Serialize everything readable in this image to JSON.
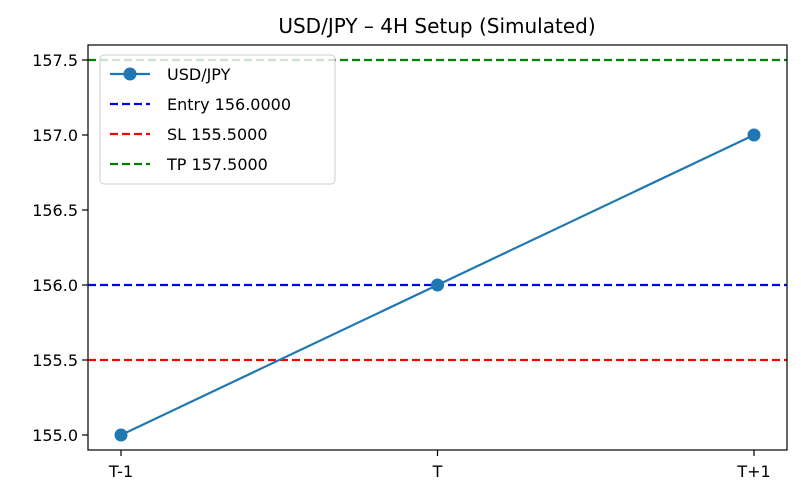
{
  "chart_data": {
    "type": "line",
    "title": "USD/JPY – 4H Setup (Simulated)",
    "xlabel": "",
    "ylabel": "",
    "categories": [
      "T-1",
      "T",
      "T+1"
    ],
    "series": [
      {
        "name": "USD/JPY",
        "values": [
          155.0,
          156.0,
          157.0
        ],
        "color": "#1f77b4",
        "marker": "circle"
      }
    ],
    "reference_lines": [
      {
        "name": "Entry 156.0000",
        "value": 156.0,
        "color": "#0000ff",
        "style": "dashed"
      },
      {
        "name": "SL 155.5000",
        "value": 155.5,
        "color": "#ff0000",
        "style": "dashed"
      },
      {
        "name": "TP 157.5000",
        "value": 157.5,
        "color": "#008000",
        "style": "dashed"
      }
    ],
    "yticks": [
      "155.0",
      "155.5",
      "156.0",
      "156.5",
      "157.0",
      "157.5"
    ],
    "ylim": [
      154.9,
      157.6
    ],
    "grid": false,
    "legend_position": "top-left"
  }
}
